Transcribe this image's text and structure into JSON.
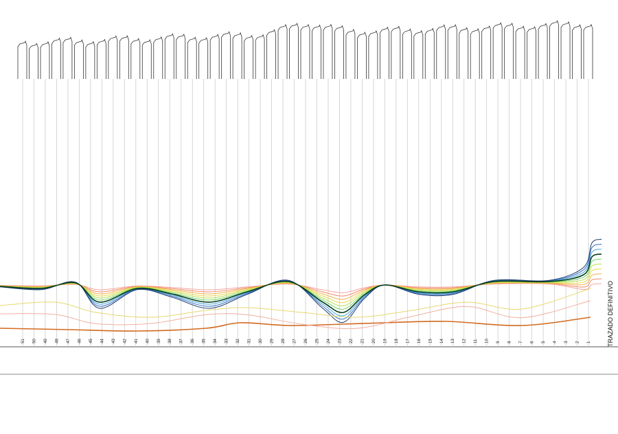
{
  "stations": [
    "51",
    "50",
    "49",
    "48",
    "47",
    "46",
    "45",
    "44",
    "43",
    "42",
    "41",
    "40",
    "39",
    "38",
    "37",
    "36",
    "35",
    "34",
    "33",
    "32",
    "31",
    "30",
    "29",
    "28",
    "27",
    "26",
    "25",
    "24",
    "23",
    "22",
    "21",
    "20",
    "19",
    "18",
    "17",
    "16",
    "15",
    "14",
    "13",
    "12",
    "11",
    "10",
    "9",
    "8",
    "7",
    "6",
    "5",
    "4",
    "3",
    "2",
    "1"
  ],
  "label": "TRAZADO DEFINITIVO"
}
